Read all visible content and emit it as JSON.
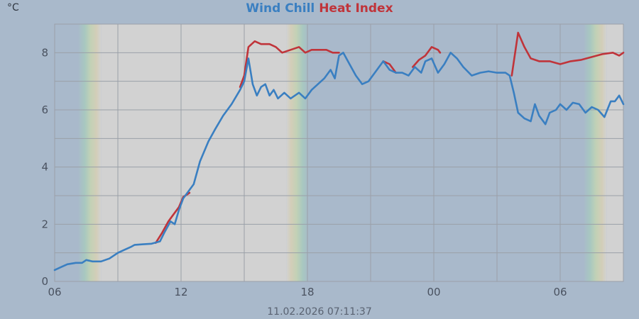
{
  "chart_data": {
    "type": "line",
    "title_parts": [
      {
        "text": "Wind Chill",
        "color": "#3a7fc1"
      },
      {
        "text": "Heat Index",
        "color": "#c0343a"
      }
    ],
    "y_unit": "°C",
    "timestamp": "11.02.2026 07:11:37",
    "x_ticks": [
      {
        "label": "06",
        "h": 6
      },
      {
        "label": "12",
        "h": 12
      },
      {
        "label": "18",
        "h": 18
      },
      {
        "label": "00",
        "h": 24
      },
      {
        "label": "06",
        "h": 30
      }
    ],
    "x_range_h": [
      6,
      33
    ],
    "ylim": [
      0,
      9
    ],
    "y_ticks": [
      0,
      2,
      4,
      6,
      8
    ],
    "grid": true,
    "colors": {
      "plot_gray": "#d2d2d2",
      "plot_blue": "#a9b9cb",
      "grid": "#9aa0a8"
    },
    "series": [
      {
        "name": "Wind Chill",
        "color": "#3a7fc1",
        "points": [
          [
            6.0,
            0.4
          ],
          [
            6.3,
            0.5
          ],
          [
            6.6,
            0.6
          ],
          [
            7.0,
            0.65
          ],
          [
            7.3,
            0.65
          ],
          [
            7.5,
            0.75
          ],
          [
            7.8,
            0.7
          ],
          [
            8.2,
            0.7
          ],
          [
            8.6,
            0.8
          ],
          [
            9.0,
            1.0
          ],
          [
            9.3,
            1.1
          ],
          [
            9.6,
            1.2
          ],
          [
            9.8,
            1.28
          ],
          [
            10.2,
            1.3
          ],
          [
            10.6,
            1.32
          ],
          [
            11.0,
            1.4
          ],
          [
            11.2,
            1.7
          ],
          [
            11.5,
            2.1
          ],
          [
            11.7,
            2.0
          ],
          [
            11.9,
            2.5
          ],
          [
            12.1,
            2.9
          ],
          [
            12.3,
            3.1
          ],
          [
            12.6,
            3.4
          ],
          [
            12.9,
            4.2
          ],
          [
            13.3,
            4.9
          ],
          [
            13.6,
            5.3
          ],
          [
            14.0,
            5.8
          ],
          [
            14.4,
            6.2
          ],
          [
            14.8,
            6.7
          ],
          [
            15.0,
            7.0
          ],
          [
            15.2,
            7.8
          ],
          [
            15.4,
            6.9
          ],
          [
            15.6,
            6.5
          ],
          [
            15.8,
            6.8
          ],
          [
            16.0,
            6.9
          ],
          [
            16.2,
            6.5
          ],
          [
            16.4,
            6.7
          ],
          [
            16.6,
            6.4
          ],
          [
            16.9,
            6.6
          ],
          [
            17.2,
            6.4
          ],
          [
            17.6,
            6.6
          ],
          [
            17.9,
            6.4
          ],
          [
            18.2,
            6.7
          ],
          [
            18.5,
            6.9
          ],
          [
            18.8,
            7.1
          ],
          [
            19.1,
            7.4
          ],
          [
            19.3,
            7.1
          ],
          [
            19.5,
            7.9
          ],
          [
            19.7,
            8.0
          ],
          [
            20.0,
            7.6
          ],
          [
            20.3,
            7.2
          ],
          [
            20.6,
            6.9
          ],
          [
            20.9,
            7.0
          ],
          [
            21.2,
            7.3
          ],
          [
            21.6,
            7.7
          ],
          [
            21.9,
            7.4
          ],
          [
            22.2,
            7.3
          ],
          [
            22.5,
            7.3
          ],
          [
            22.8,
            7.2
          ],
          [
            23.1,
            7.5
          ],
          [
            23.4,
            7.3
          ],
          [
            23.6,
            7.7
          ],
          [
            23.9,
            7.8
          ],
          [
            24.2,
            7.3
          ],
          [
            24.5,
            7.6
          ],
          [
            24.8,
            8.0
          ],
          [
            25.1,
            7.8
          ],
          [
            25.4,
            7.5
          ],
          [
            25.8,
            7.2
          ],
          [
            26.2,
            7.3
          ],
          [
            26.6,
            7.35
          ],
          [
            27.0,
            7.3
          ],
          [
            27.4,
            7.3
          ],
          [
            27.6,
            7.2
          ],
          [
            27.8,
            6.6
          ],
          [
            28.0,
            5.9
          ],
          [
            28.3,
            5.7
          ],
          [
            28.6,
            5.6
          ],
          [
            28.8,
            6.2
          ],
          [
            29.0,
            5.8
          ],
          [
            29.3,
            5.5
          ],
          [
            29.5,
            5.9
          ],
          [
            29.8,
            6.0
          ],
          [
            30.0,
            6.2
          ],
          [
            30.3,
            6.0
          ],
          [
            30.6,
            6.25
          ],
          [
            30.9,
            6.2
          ],
          [
            31.2,
            5.9
          ],
          [
            31.5,
            6.1
          ],
          [
            31.8,
            6.0
          ],
          [
            32.1,
            5.75
          ],
          [
            32.4,
            6.3
          ],
          [
            32.6,
            6.3
          ],
          [
            32.8,
            6.5
          ],
          [
            33.0,
            6.2
          ]
        ]
      },
      {
        "name": "Heat Index",
        "color": "#c0343a",
        "points": [
          [
            10.8,
            1.35
          ],
          [
            11.1,
            1.7
          ],
          [
            11.4,
            2.1
          ],
          [
            11.6,
            2.3
          ],
          [
            11.9,
            2.6
          ],
          [
            12.1,
            2.95
          ],
          [
            12.4,
            3.1
          ],
          [
            14.8,
            6.8
          ],
          [
            15.0,
            7.2
          ],
          [
            15.2,
            8.2
          ],
          [
            15.5,
            8.4
          ],
          [
            15.8,
            8.3
          ],
          [
            16.2,
            8.3
          ],
          [
            16.5,
            8.2
          ],
          [
            16.8,
            8.0
          ],
          [
            17.2,
            8.1
          ],
          [
            17.6,
            8.2
          ],
          [
            17.9,
            8.0
          ],
          [
            18.2,
            8.1
          ],
          [
            18.6,
            8.1
          ],
          [
            18.9,
            8.1
          ],
          [
            19.2,
            8.0
          ],
          [
            19.5,
            8.0
          ],
          [
            21.6,
            7.7
          ],
          [
            21.9,
            7.6
          ],
          [
            22.2,
            7.3
          ],
          [
            23.0,
            7.5
          ],
          [
            23.3,
            7.75
          ],
          [
            23.6,
            7.9
          ],
          [
            23.9,
            8.2
          ],
          [
            24.2,
            8.1
          ],
          [
            24.3,
            8.0
          ],
          [
            27.7,
            7.2
          ],
          [
            28.0,
            8.7
          ],
          [
            28.3,
            8.2
          ],
          [
            28.6,
            7.8
          ],
          [
            29.0,
            7.7
          ],
          [
            29.5,
            7.7
          ],
          [
            30.0,
            7.6
          ],
          [
            30.5,
            7.7
          ],
          [
            31.0,
            7.75
          ],
          [
            31.5,
            7.85
          ],
          [
            32.0,
            7.95
          ],
          [
            32.5,
            8.0
          ],
          [
            32.8,
            7.9
          ],
          [
            33.0,
            8.0
          ]
        ]
      }
    ]
  }
}
